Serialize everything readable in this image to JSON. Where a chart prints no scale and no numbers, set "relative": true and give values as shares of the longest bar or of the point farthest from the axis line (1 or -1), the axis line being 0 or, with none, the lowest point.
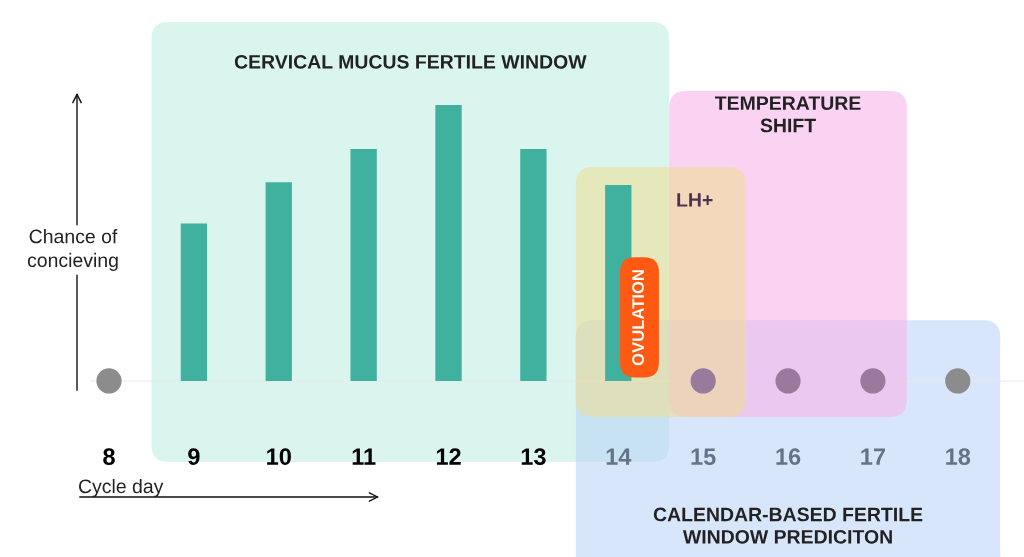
{
  "chart_data": {
    "type": "bar",
    "relative": true,
    "categories": [
      "8",
      "9",
      "10",
      "11",
      "12",
      "13",
      "14",
      "15",
      "16",
      "17",
      "18"
    ],
    "series": [
      {
        "type": "bar",
        "color": "#40b09f",
        "values": [
          null,
          0.57,
          0.72,
          0.84,
          1,
          0.84,
          0.71,
          null,
          null,
          null,
          null
        ]
      },
      {
        "type": "scatter",
        "colors": [
          "#8c8c8c",
          null,
          null,
          null,
          null,
          null,
          null,
          "#9a7a9c",
          "#9a7a9c",
          "#9a7a9c",
          "#8c8c8c"
        ],
        "values": [
          0,
          null,
          null,
          null,
          null,
          null,
          null,
          0,
          0,
          0,
          0
        ]
      }
    ],
    "bands": [
      {
        "axis": "x",
        "from": "9",
        "to": "14",
        "label": "CERVICAL MUCUS FERTILE WINDOW",
        "color": "#d3f3ea"
      },
      {
        "axis": "x",
        "from": "15",
        "to": "17",
        "label": "TEMPERATURE\nSHIFT",
        "color": "#f7b4ea"
      },
      {
        "axis": "x",
        "from": "14",
        "to": "15",
        "label": "LH+",
        "color": "#eedc90"
      },
      {
        "axis": "x",
        "from": "14",
        "to": "18",
        "label": "CALENDAR-BASED FERTILE\nWINDOW PREDICITON",
        "color": "#b8d2f7"
      }
    ],
    "annotations": [
      {
        "text": "OVULATION",
        "x": "14",
        "y": 0.23
      }
    ],
    "xlabel": "Cycle day",
    "ylabel": "Chance of\nconcieving",
    "legend": false,
    "grid": false
  }
}
